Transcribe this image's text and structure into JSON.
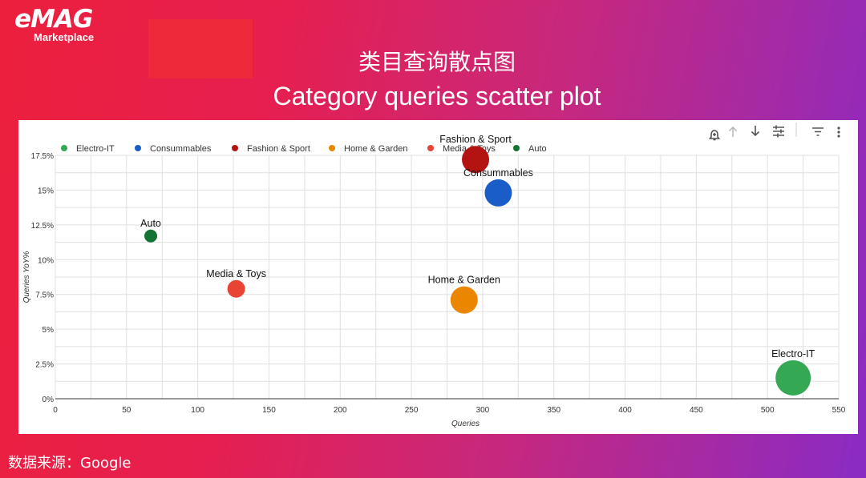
{
  "brand": {
    "logo_text": "eMAG",
    "logo_sub": "Marketplace"
  },
  "title_cn": "类目查询散点图",
  "title_en": "Category queries scatter plot",
  "source": "数据来源：Google",
  "toolbar_icons": [
    "bell-add-icon",
    "arrow-up-icon",
    "arrow-down-icon",
    "tune-icon",
    "filter-icon",
    "more-vert-icon"
  ],
  "chart_data": {
    "type": "scatter",
    "xlabel": "Queries",
    "ylabel": "Queries YoY%",
    "xlim": [
      0,
      550
    ],
    "ylim": [
      0,
      17.5
    ],
    "xticks": [
      0,
      50,
      100,
      150,
      200,
      250,
      300,
      350,
      400,
      450,
      500,
      550
    ],
    "yticks": [
      "0%",
      "2.5%",
      "5%",
      "7.5%",
      "10%",
      "12.5%",
      "15%",
      "17.5%"
    ],
    "grid": true,
    "legend_position": "top",
    "series": [
      {
        "name": "Electro-IT",
        "color": "#34a853",
        "x": 518,
        "y": 1.5,
        "size": 22
      },
      {
        "name": "Consummables",
        "color": "#1a5cc8",
        "x": 311,
        "y": 14.8,
        "size": 17
      },
      {
        "name": "Fashion & Sport",
        "color": "#b31412",
        "x": 295,
        "y": 17.2,
        "size": 17
      },
      {
        "name": "Home & Garden",
        "color": "#ea8600",
        "x": 287,
        "y": 7.1,
        "size": 17
      },
      {
        "name": "Media & Toys",
        "color": "#e94335",
        "x": 127,
        "y": 7.9,
        "size": 11
      },
      {
        "name": "Auto",
        "color": "#137333",
        "x": 67,
        "y": 11.7,
        "size": 8
      }
    ]
  }
}
